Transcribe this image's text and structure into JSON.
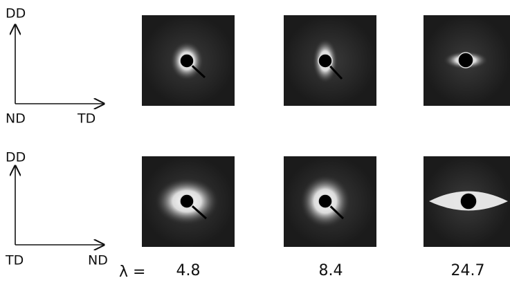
{
  "rows": [
    {
      "up": "DD",
      "origin": "ND",
      "right": "TD"
    },
    {
      "up": "DD",
      "origin": "TD",
      "right": "ND"
    }
  ],
  "lambda": {
    "label": "λ =",
    "values": [
      4.8,
      8.4,
      24.7
    ]
  }
}
